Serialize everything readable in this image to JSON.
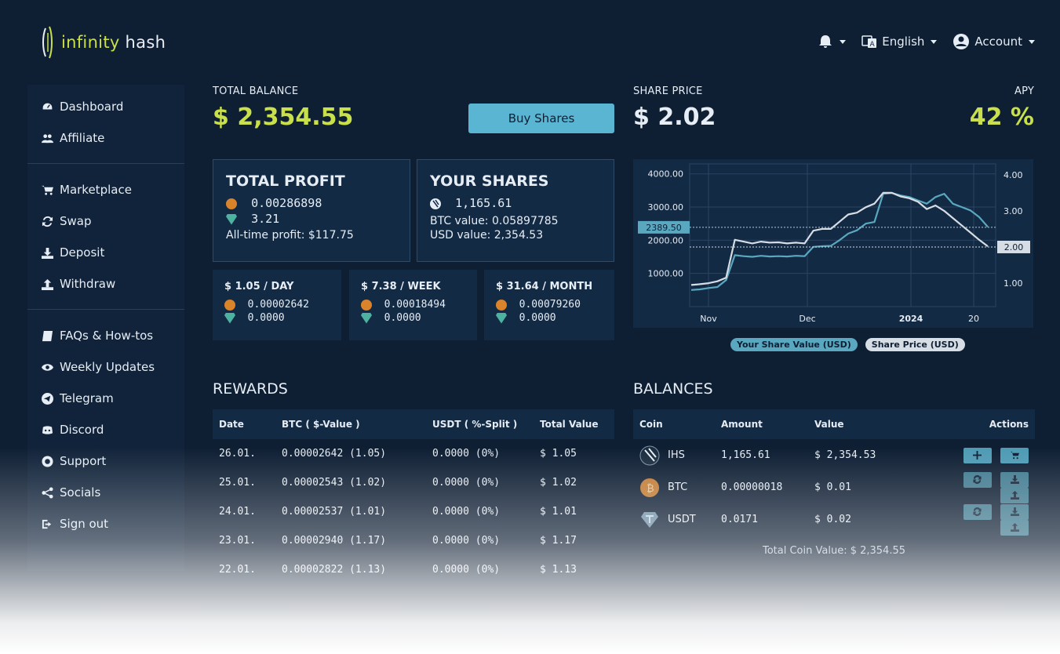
{
  "brand": {
    "name_part1": "infinity",
    "name_part2": " hash"
  },
  "topnav": {
    "language": "English",
    "account": "Account"
  },
  "sidebar": {
    "group1": [
      {
        "label": "Dashboard",
        "icon": "dashboard-icon"
      },
      {
        "label": "Affiliate",
        "icon": "users-icon"
      }
    ],
    "group2": [
      {
        "label": "Marketplace",
        "icon": "cart-icon"
      },
      {
        "label": "Swap",
        "icon": "refresh-icon"
      },
      {
        "label": "Deposit",
        "icon": "download-icon"
      },
      {
        "label": "Withdraw",
        "icon": "upload-icon"
      }
    ],
    "group3": [
      {
        "label": "FAQs & How-tos",
        "icon": "book-icon"
      },
      {
        "label": "Weekly Updates",
        "icon": "eye-icon"
      },
      {
        "label": "Telegram",
        "icon": "telegram-icon"
      },
      {
        "label": "Discord",
        "icon": "discord-icon"
      },
      {
        "label": "Support",
        "icon": "lifebuoy-icon"
      },
      {
        "label": "Socials",
        "icon": "share-icon"
      },
      {
        "label": "Sign out",
        "icon": "signout-icon"
      }
    ]
  },
  "balance": {
    "label": "TOTAL BALANCE",
    "value": "$ 2,354.55",
    "buy_label": "Buy Shares"
  },
  "share": {
    "label": "SHARE PRICE",
    "value": "$ 2.02",
    "apy_label": "APY",
    "apy_value": "42 %"
  },
  "profit": {
    "title": "TOTAL PROFIT",
    "btc": "0.00286898",
    "usdt": "3.21",
    "alltime": "All-time profit: $117.75"
  },
  "shares": {
    "title": "YOUR SHARES",
    "amount": "1,165.61",
    "btc_value": "BTC value: 0.05897785",
    "usd_value": "USD value: 2,354.53"
  },
  "periods": [
    {
      "title": "$ 1.05 / DAY",
      "btc": "0.00002642",
      "usdt": "0.0000"
    },
    {
      "title": "$ 7.38 / WEEK",
      "btc": "0.00018494",
      "usdt": "0.0000"
    },
    {
      "title": "$ 31.64 / MONTH",
      "btc": "0.00079260",
      "usdt": "0.0000"
    }
  ],
  "chart_data": {
    "type": "line",
    "x_ticks": [
      "Nov",
      "Dec",
      "2024",
      "20"
    ],
    "y_left_ticks": [
      "4000.00",
      "3000.00",
      "2000.00",
      "1000.00"
    ],
    "y_left_range": [
      0,
      4300
    ],
    "y_right_ticks": [
      "4.00",
      "3.00",
      "2.00",
      "1.00"
    ],
    "y_right_range": [
      0.35,
      4.3
    ],
    "left_marker": "2389.50",
    "right_marker": "2.00",
    "grid": true,
    "series": [
      {
        "name": "Your Share Value (USD)",
        "axis": "left",
        "color": "#5aa8c0",
        "values": [
          500,
          520,
          560,
          590,
          800,
          1550,
          1520,
          1500,
          1530,
          1510,
          1520,
          1510,
          1530,
          1520,
          1800,
          1820,
          1830,
          2000,
          2200,
          2300,
          2500,
          2550,
          3400,
          3420,
          3350,
          3300,
          3200,
          3100,
          3300,
          3400,
          3100,
          3000,
          2900,
          2700,
          2400
        ]
      },
      {
        "name": "Share Price (USD)",
        "axis": "right",
        "color": "#d7dde5",
        "values": [
          0.95,
          0.97,
          1.0,
          1.05,
          1.15,
          2.2,
          2.15,
          2.1,
          2.15,
          2.12,
          2.13,
          2.1,
          2.12,
          2.1,
          2.45,
          2.5,
          2.5,
          2.7,
          2.9,
          2.95,
          3.1,
          3.2,
          3.5,
          3.5,
          3.4,
          3.35,
          3.25,
          3.05,
          3.15,
          3.0,
          2.8,
          2.6,
          2.4,
          2.2,
          2.02
        ]
      }
    ]
  },
  "legend": [
    "Your Share Value (USD)",
    "Share Price (USD)"
  ],
  "rewards": {
    "title": "REWARDS",
    "headers": [
      "Date",
      "BTC ( $-Value )",
      "USDT ( %-Split )",
      "Total Value"
    ],
    "rows": [
      [
        "26.01.",
        "0.00002642 (1.05)",
        "0.0000 (0%)",
        "$ 1.05"
      ],
      [
        "25.01.",
        "0.00002543 (1.02)",
        "0.0000 (0%)",
        "$ 1.02"
      ],
      [
        "24.01.",
        "0.00002537 (1.01)",
        "0.0000 (0%)",
        "$ 1.01"
      ],
      [
        "23.01.",
        "0.00002940 (1.17)",
        "0.0000 (0%)",
        "$ 1.17"
      ],
      [
        "22.01.",
        "0.00002822 (1.13)",
        "0.0000 (0%)",
        "$ 1.13"
      ]
    ]
  },
  "balances": {
    "title": "BALANCES",
    "headers": [
      "Coin",
      "Amount",
      "Value",
      "Actions"
    ],
    "rows": [
      {
        "coin": "IHS",
        "amount": "1,165.61",
        "value": "$ 2,354.53"
      },
      {
        "coin": "BTC",
        "amount": "0.00000018",
        "value": "$ 0.01"
      },
      {
        "coin": "USDT",
        "amount": "0.0171",
        "value": "$ 0.02"
      }
    ],
    "total": "Total Coin Value: $ 2,354.55"
  }
}
